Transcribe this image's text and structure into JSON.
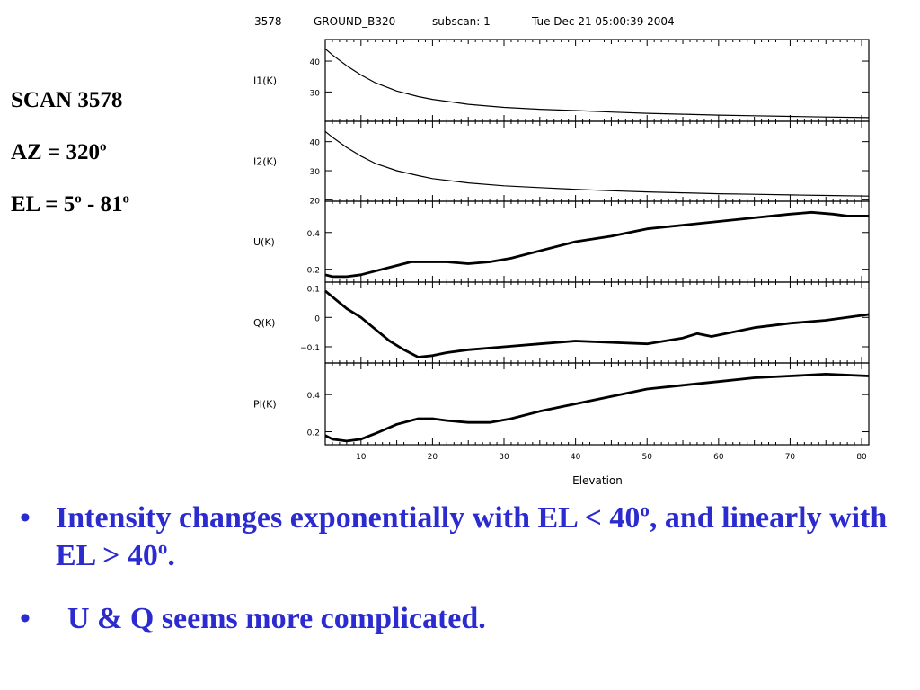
{
  "left_info": {
    "scan": "SCAN 3578",
    "az_prefix": "AZ = 320",
    "az_deg": "o",
    "el_prefix": "EL = 5",
    "el_deg1": "o",
    "el_mid": " - 81",
    "el_deg2": "o"
  },
  "plot_header": {
    "scan_no": "3578",
    "source": "GROUND_B320",
    "subscan": "subscan:  1",
    "datetime": "Tue Dec 21 05:00:39 2004"
  },
  "chart_data": {
    "type": "line",
    "xlabel": "Elevation",
    "xlim": [
      5,
      81
    ],
    "x_ticks": [
      10,
      20,
      30,
      40,
      50,
      60,
      70,
      80
    ],
    "panels": [
      {
        "ylabel": "I1(K)",
        "ylim": [
          20.5,
          47
        ],
        "y_ticks": [
          30,
          40
        ],
        "x": [
          5,
          6,
          8,
          10,
          12,
          15,
          18,
          20,
          25,
          30,
          35,
          40,
          45,
          50,
          55,
          60,
          65,
          70,
          75,
          81
        ],
        "y": [
          44,
          42,
          38.5,
          35.5,
          33,
          30.3,
          28.5,
          27.6,
          26,
          25,
          24.4,
          24,
          23.5,
          23.1,
          22.8,
          22.5,
          22.3,
          22.1,
          21.9,
          21.7
        ]
      },
      {
        "ylabel": "I2(K)",
        "ylim": [
          19.5,
          47
        ],
        "y_ticks": [
          20,
          30,
          40
        ],
        "x": [
          5,
          6,
          8,
          10,
          12,
          15,
          18,
          20,
          25,
          30,
          35,
          40,
          45,
          50,
          55,
          60,
          65,
          70,
          75,
          81
        ],
        "y": [
          43.5,
          41.5,
          38,
          35,
          32.5,
          30,
          28.3,
          27.3,
          25.8,
          24.8,
          24.2,
          23.6,
          23.1,
          22.7,
          22.4,
          22.1,
          21.9,
          21.7,
          21.5,
          21.3
        ]
      },
      {
        "ylabel": "U(K)",
        "ylim": [
          0.13,
          0.57
        ],
        "y_ticks": [
          0.2,
          0.4
        ],
        "x": [
          5,
          6,
          8,
          10,
          12,
          14,
          17,
          20,
          22,
          25,
          28,
          31,
          35,
          40,
          45,
          50,
          55,
          60,
          65,
          70,
          73,
          76,
          78,
          81
        ],
        "y": [
          0.17,
          0.16,
          0.16,
          0.17,
          0.19,
          0.21,
          0.24,
          0.24,
          0.24,
          0.23,
          0.24,
          0.26,
          0.3,
          0.35,
          0.38,
          0.42,
          0.44,
          0.46,
          0.48,
          0.5,
          0.51,
          0.5,
          0.49,
          0.49
        ]
      },
      {
        "ylabel": "Q(K)",
        "ylim": [
          -0.155,
          0.12
        ],
        "y_ticks": [
          -0.1,
          0,
          0.1
        ],
        "x": [
          5,
          6,
          8,
          10,
          12,
          14,
          16,
          18,
          20,
          22,
          25,
          30,
          35,
          40,
          45,
          50,
          55,
          57,
          59,
          62,
          65,
          70,
          75,
          81
        ],
        "y": [
          0.09,
          0.07,
          0.03,
          0.0,
          -0.04,
          -0.08,
          -0.11,
          -0.135,
          -0.13,
          -0.12,
          -0.11,
          -0.1,
          -0.09,
          -0.08,
          -0.085,
          -0.09,
          -0.07,
          -0.055,
          -0.065,
          -0.05,
          -0.035,
          -0.02,
          -0.01,
          0.01
        ]
      },
      {
        "ylabel": "PI(K)",
        "ylim": [
          0.13,
          0.57
        ],
        "y_ticks": [
          0.2,
          0.4
        ],
        "x": [
          5,
          6,
          8,
          10,
          12,
          15,
          18,
          20,
          22,
          25,
          28,
          31,
          35,
          40,
          45,
          50,
          55,
          60,
          65,
          70,
          75,
          81
        ],
        "y": [
          0.18,
          0.16,
          0.15,
          0.16,
          0.19,
          0.24,
          0.27,
          0.27,
          0.26,
          0.25,
          0.25,
          0.27,
          0.31,
          0.35,
          0.39,
          0.43,
          0.45,
          0.47,
          0.49,
          0.5,
          0.51,
          0.5
        ]
      }
    ]
  },
  "bullets": {
    "b1_part1": "Intensity changes exponentially with EL < 40",
    "b1_sup1": "o",
    "b1_part2": ", and linearly with EL > 40",
    "b1_sup2": "o",
    "b1_part3": ".",
    "b2": "U & Q seems more complicated."
  },
  "colors": {
    "bullet_text": "#2b2bd0",
    "plot_ink": "#000000"
  }
}
